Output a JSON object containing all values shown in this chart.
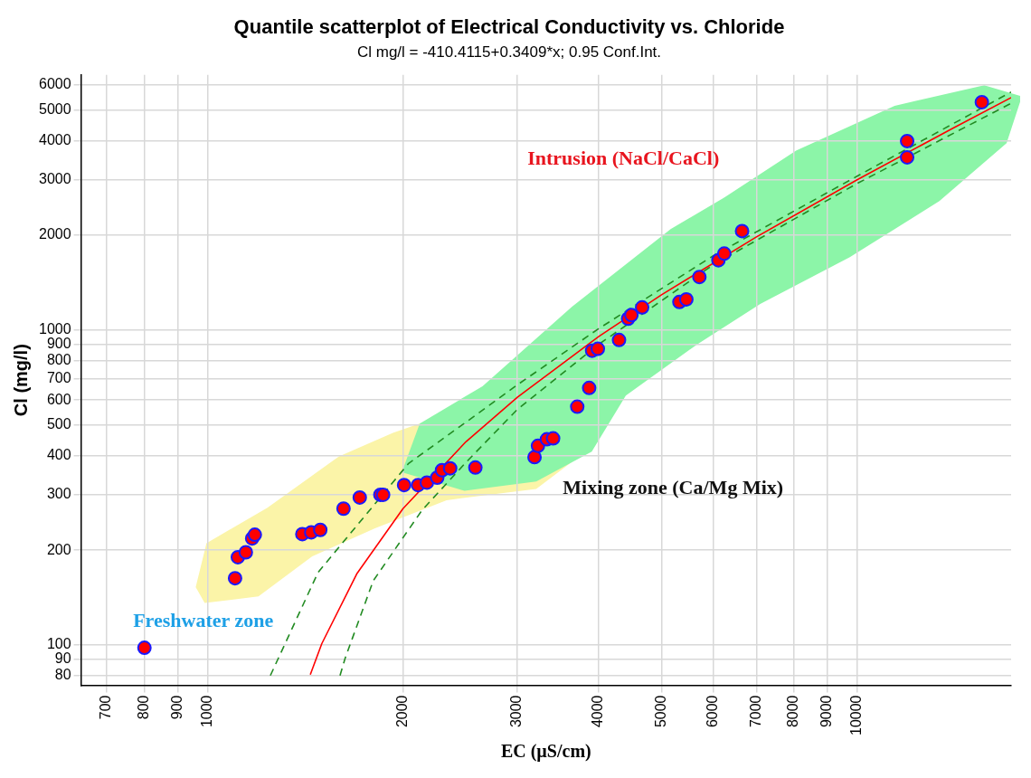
{
  "chart_data": {
    "type": "scatter",
    "title": "Quantile scatterplot of Electrical Conductivity vs. Chloride",
    "subtitle": "Cl mg/l = -410.4115+0.3409*x; 0.95 Conf.Int.",
    "xlabel": "EC (µS/cm)",
    "ylabel": "Cl (mg/l)",
    "log": "xy",
    "grid": true,
    "xlim": [
      639,
      17260
    ],
    "xticks": [
      700,
      800,
      900,
      1000,
      2000,
      3000,
      4000,
      5000,
      6000,
      7000,
      8000,
      9000,
      10000
    ],
    "ylim": [
      74.5,
      6460
    ],
    "yticks": [
      80,
      90,
      100,
      200,
      300,
      400,
      500,
      600,
      700,
      800,
      900,
      1000,
      2000,
      3000,
      4000,
      5000,
      6000
    ],
    "series": [
      {
        "type": "scatter",
        "marker": "circle",
        "color": "#ff0000",
        "x": [
          800,
          1103,
          1114,
          1146,
          1172,
          1183,
          1400,
          1445,
          1492,
          1620,
          1716,
          1846,
          1864,
          2008,
          2110,
          2177,
          2258,
          2297,
          2364,
          2585,
          3188,
          3227,
          3331,
          3405,
          3709,
          3869,
          3910,
          3990,
          4301,
          4442,
          4494,
          4668,
          5327,
          5460,
          5718,
          6117,
          6245,
          6652,
          11940,
          11940,
          15560
        ],
        "values": [
          98,
          163,
          190,
          197,
          218,
          224,
          225,
          228,
          232,
          271,
          294,
          300,
          300,
          322,
          322,
          328,
          340,
          359,
          364,
          366,
          395,
          429,
          450,
          453,
          571,
          655,
          860,
          872,
          930,
          1087,
          1116,
          1180,
          1228,
          1252,
          1474,
          1666,
          1749,
          2063,
          3982,
          3535,
          5294
        ]
      },
      {
        "type": "line",
        "color": "#ff0000",
        "line_style": "solid",
        "marker": "none",
        "x": [
          1440,
          1500,
          1700,
          2000,
          2500,
          3000,
          4000,
          5000,
          7000,
          10000,
          14000,
          17260
        ],
        "values": [
          80.5,
          101,
          169,
          271,
          442,
          612,
          953,
          1294,
          1976,
          2999,
          4362,
          5474
        ]
      },
      {
        "type": "line",
        "color": "#228b22",
        "line_style": "dashed",
        "marker": "none",
        "x": [
          1250,
          1480,
          1700,
          2040,
          2500,
          3000,
          4000,
          6000,
          10000,
          17260
        ],
        "values": [
          80,
          170,
          240,
          377,
          510,
          670,
          1010,
          1720,
          3080,
          5700
        ]
      },
      {
        "type": "line",
        "color": "#228b22",
        "line_style": "dashed",
        "marker": "none",
        "x": [
          1600,
          1630,
          1800,
          2140,
          2500,
          3000,
          4000,
          6000,
          10000,
          17260
        ],
        "values": [
          80,
          91,
          160,
          268,
          380,
          560,
          900,
          1610,
          2920,
          5250
        ]
      }
    ],
    "annotations": [
      "Freshwater zone",
      "Mixing zone (Ca/Mg Mix)",
      "Intrusion (NaCl/CaCl)"
    ]
  }
}
